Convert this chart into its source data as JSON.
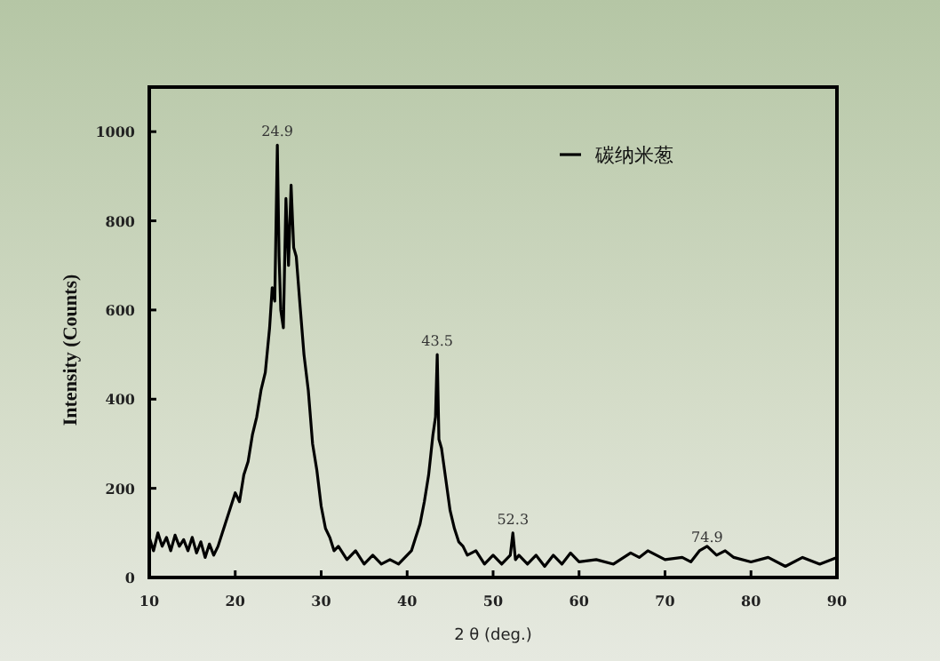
{
  "chart_data": {
    "type": "line",
    "xlabel": "2 θ (deg.)",
    "ylabel": "Intensity (Counts)",
    "xlim": [
      10,
      90
    ],
    "ylim": [
      0,
      1100
    ],
    "xticks": [
      10,
      20,
      30,
      40,
      50,
      60,
      70,
      80,
      90
    ],
    "yticks": [
      0,
      200,
      400,
      600,
      800,
      1000
    ],
    "grid": false,
    "legend": "top right",
    "marker": "none",
    "line_style": "solid",
    "series": [
      {
        "name": "碳纳米葱",
        "color": "#000000",
        "x": [
          10,
          10.5,
          11,
          11.5,
          12,
          12.5,
          13,
          13.5,
          14,
          14.5,
          15,
          15.5,
          16,
          16.5,
          17,
          17.5,
          18,
          18.5,
          19,
          19.5,
          20,
          20.5,
          21,
          21.5,
          22,
          22.5,
          23,
          23.5,
          24,
          24.3,
          24.6,
          24.9,
          25.1,
          25.3,
          25.6,
          25.9,
          26.2,
          26.5,
          26.8,
          27.1,
          27.5,
          28,
          28.5,
          29,
          29.5,
          30,
          30.5,
          31,
          31.5,
          32,
          33,
          34,
          35,
          36,
          37,
          38,
          39,
          40,
          40.5,
          41,
          41.5,
          42,
          42.5,
          43,
          43.3,
          43.5,
          43.7,
          44,
          44.5,
          45,
          45.5,
          46,
          46.5,
          47,
          48,
          49,
          50,
          51,
          52,
          52.3,
          52.6,
          53,
          54,
          55,
          56,
          57,
          58,
          59,
          60,
          62,
          64,
          66,
          67,
          68,
          70,
          72,
          73,
          74,
          74.9,
          76,
          77,
          78,
          80,
          82,
          84,
          86,
          88,
          90
        ],
        "values": [
          90,
          60,
          100,
          70,
          90,
          60,
          95,
          70,
          85,
          60,
          90,
          55,
          80,
          45,
          75,
          50,
          70,
          100,
          130,
          160,
          190,
          170,
          230,
          260,
          320,
          360,
          420,
          460,
          560,
          650,
          620,
          970,
          720,
          600,
          560,
          850,
          700,
          880,
          740,
          720,
          620,
          500,
          420,
          300,
          240,
          160,
          110,
          90,
          60,
          70,
          40,
          60,
          30,
          50,
          30,
          40,
          30,
          50,
          60,
          90,
          120,
          170,
          230,
          320,
          360,
          500,
          310,
          290,
          220,
          150,
          110,
          80,
          70,
          50,
          60,
          30,
          50,
          30,
          50,
          100,
          40,
          50,
          30,
          50,
          25,
          50,
          30,
          55,
          35,
          40,
          30,
          55,
          45,
          60,
          40,
          45,
          35,
          60,
          70,
          50,
          60,
          45,
          35,
          45,
          25,
          45,
          30,
          45
        ]
      }
    ],
    "annotations": [
      {
        "text": "24.9",
        "x": 24.9,
        "y": 970
      },
      {
        "text": "43.5",
        "x": 43.5,
        "y": 500
      },
      {
        "text": "52.3",
        "x": 52.3,
        "y": 100
      },
      {
        "text": "74.9",
        "x": 74.9,
        "y": 60
      }
    ]
  }
}
